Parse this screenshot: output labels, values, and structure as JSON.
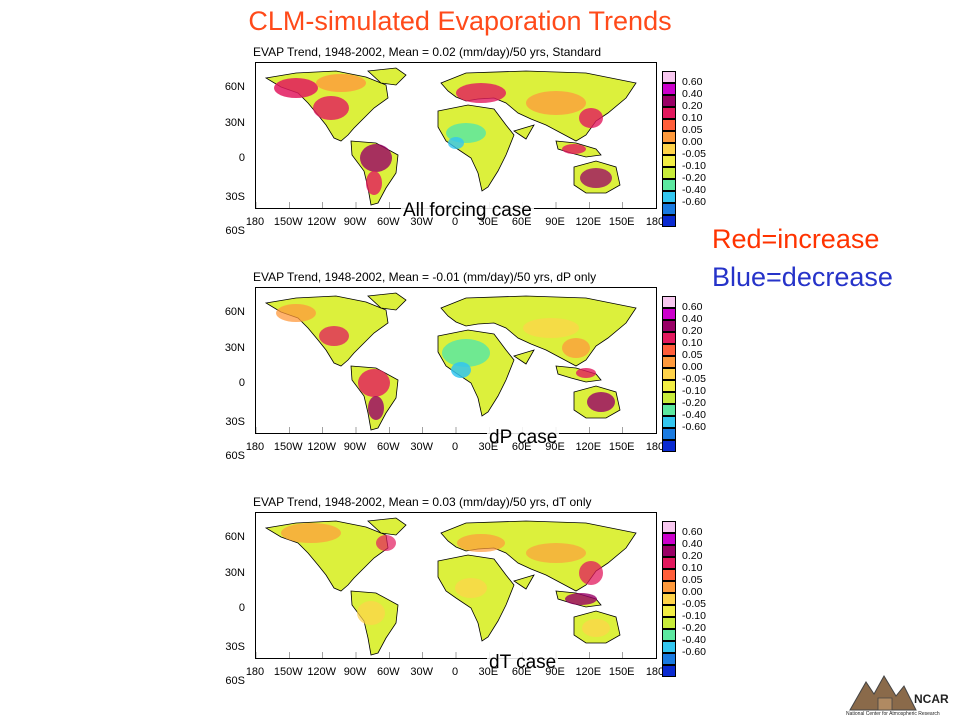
{
  "title": "CLM-simulated Evaporation Trends",
  "colors": {
    "title": "#ff4a1a",
    "increase": "#ff3300",
    "decrease": "#2633c9",
    "ocean": "#ffffff",
    "land_base": "#dcf03c"
  },
  "legend_notes": {
    "increase": "Red=increase",
    "decrease": "Blue=decrease"
  },
  "map_axes": {
    "y_labels": [
      "60N",
      "30N",
      "0",
      "30S",
      "60S"
    ],
    "x_labels": [
      "180",
      "150W",
      "120W",
      "90W",
      "60W",
      "30W",
      "0",
      "30E",
      "60E",
      "90E",
      "120E",
      "150E",
      "180"
    ]
  },
  "colorbar": [
    {
      "label": "",
      "color": "#f8c8f0"
    },
    {
      "label": "0.60",
      "color": "#cc00cc"
    },
    {
      "label": "0.40",
      "color": "#990066"
    },
    {
      "label": "0.20",
      "color": "#e2195e"
    },
    {
      "label": "0.10",
      "color": "#ff5e3a"
    },
    {
      "label": "0.05",
      "color": "#ff9a3c"
    },
    {
      "label": "0.00",
      "color": "#ffd34a"
    },
    {
      "label": "-0.05",
      "color": "#f2ee44"
    },
    {
      "label": "-0.10",
      "color": "#c8ec3a"
    },
    {
      "label": "-0.20",
      "color": "#5ce8a0"
    },
    {
      "label": "-0.40",
      "color": "#33c6f0"
    },
    {
      "label": "-0.60",
      "color": "#1a7ae0"
    },
    {
      "label": "",
      "color": "#0a2ad0"
    }
  ],
  "panels": [
    {
      "title": "EVAP Trend, 1948-2002, Mean =  0.02 (mm/day)/50 yrs, Standard",
      "case_label": "All forcing case",
      "mean_trend": 0.02
    },
    {
      "title": "EVAP Trend, 1948-2002, Mean = -0.01 (mm/day)/50 yrs, dP only",
      "case_label": "dP case",
      "mean_trend": -0.01
    },
    {
      "title": "EVAP Trend, 1948-2002, Mean =  0.03 (mm/day)/50 yrs, dT only",
      "case_label": "dT case",
      "mean_trend": 0.03
    }
  ],
  "logo": {
    "name": "NCAR",
    "subtitle": "National Center for Atmospheric Research"
  }
}
